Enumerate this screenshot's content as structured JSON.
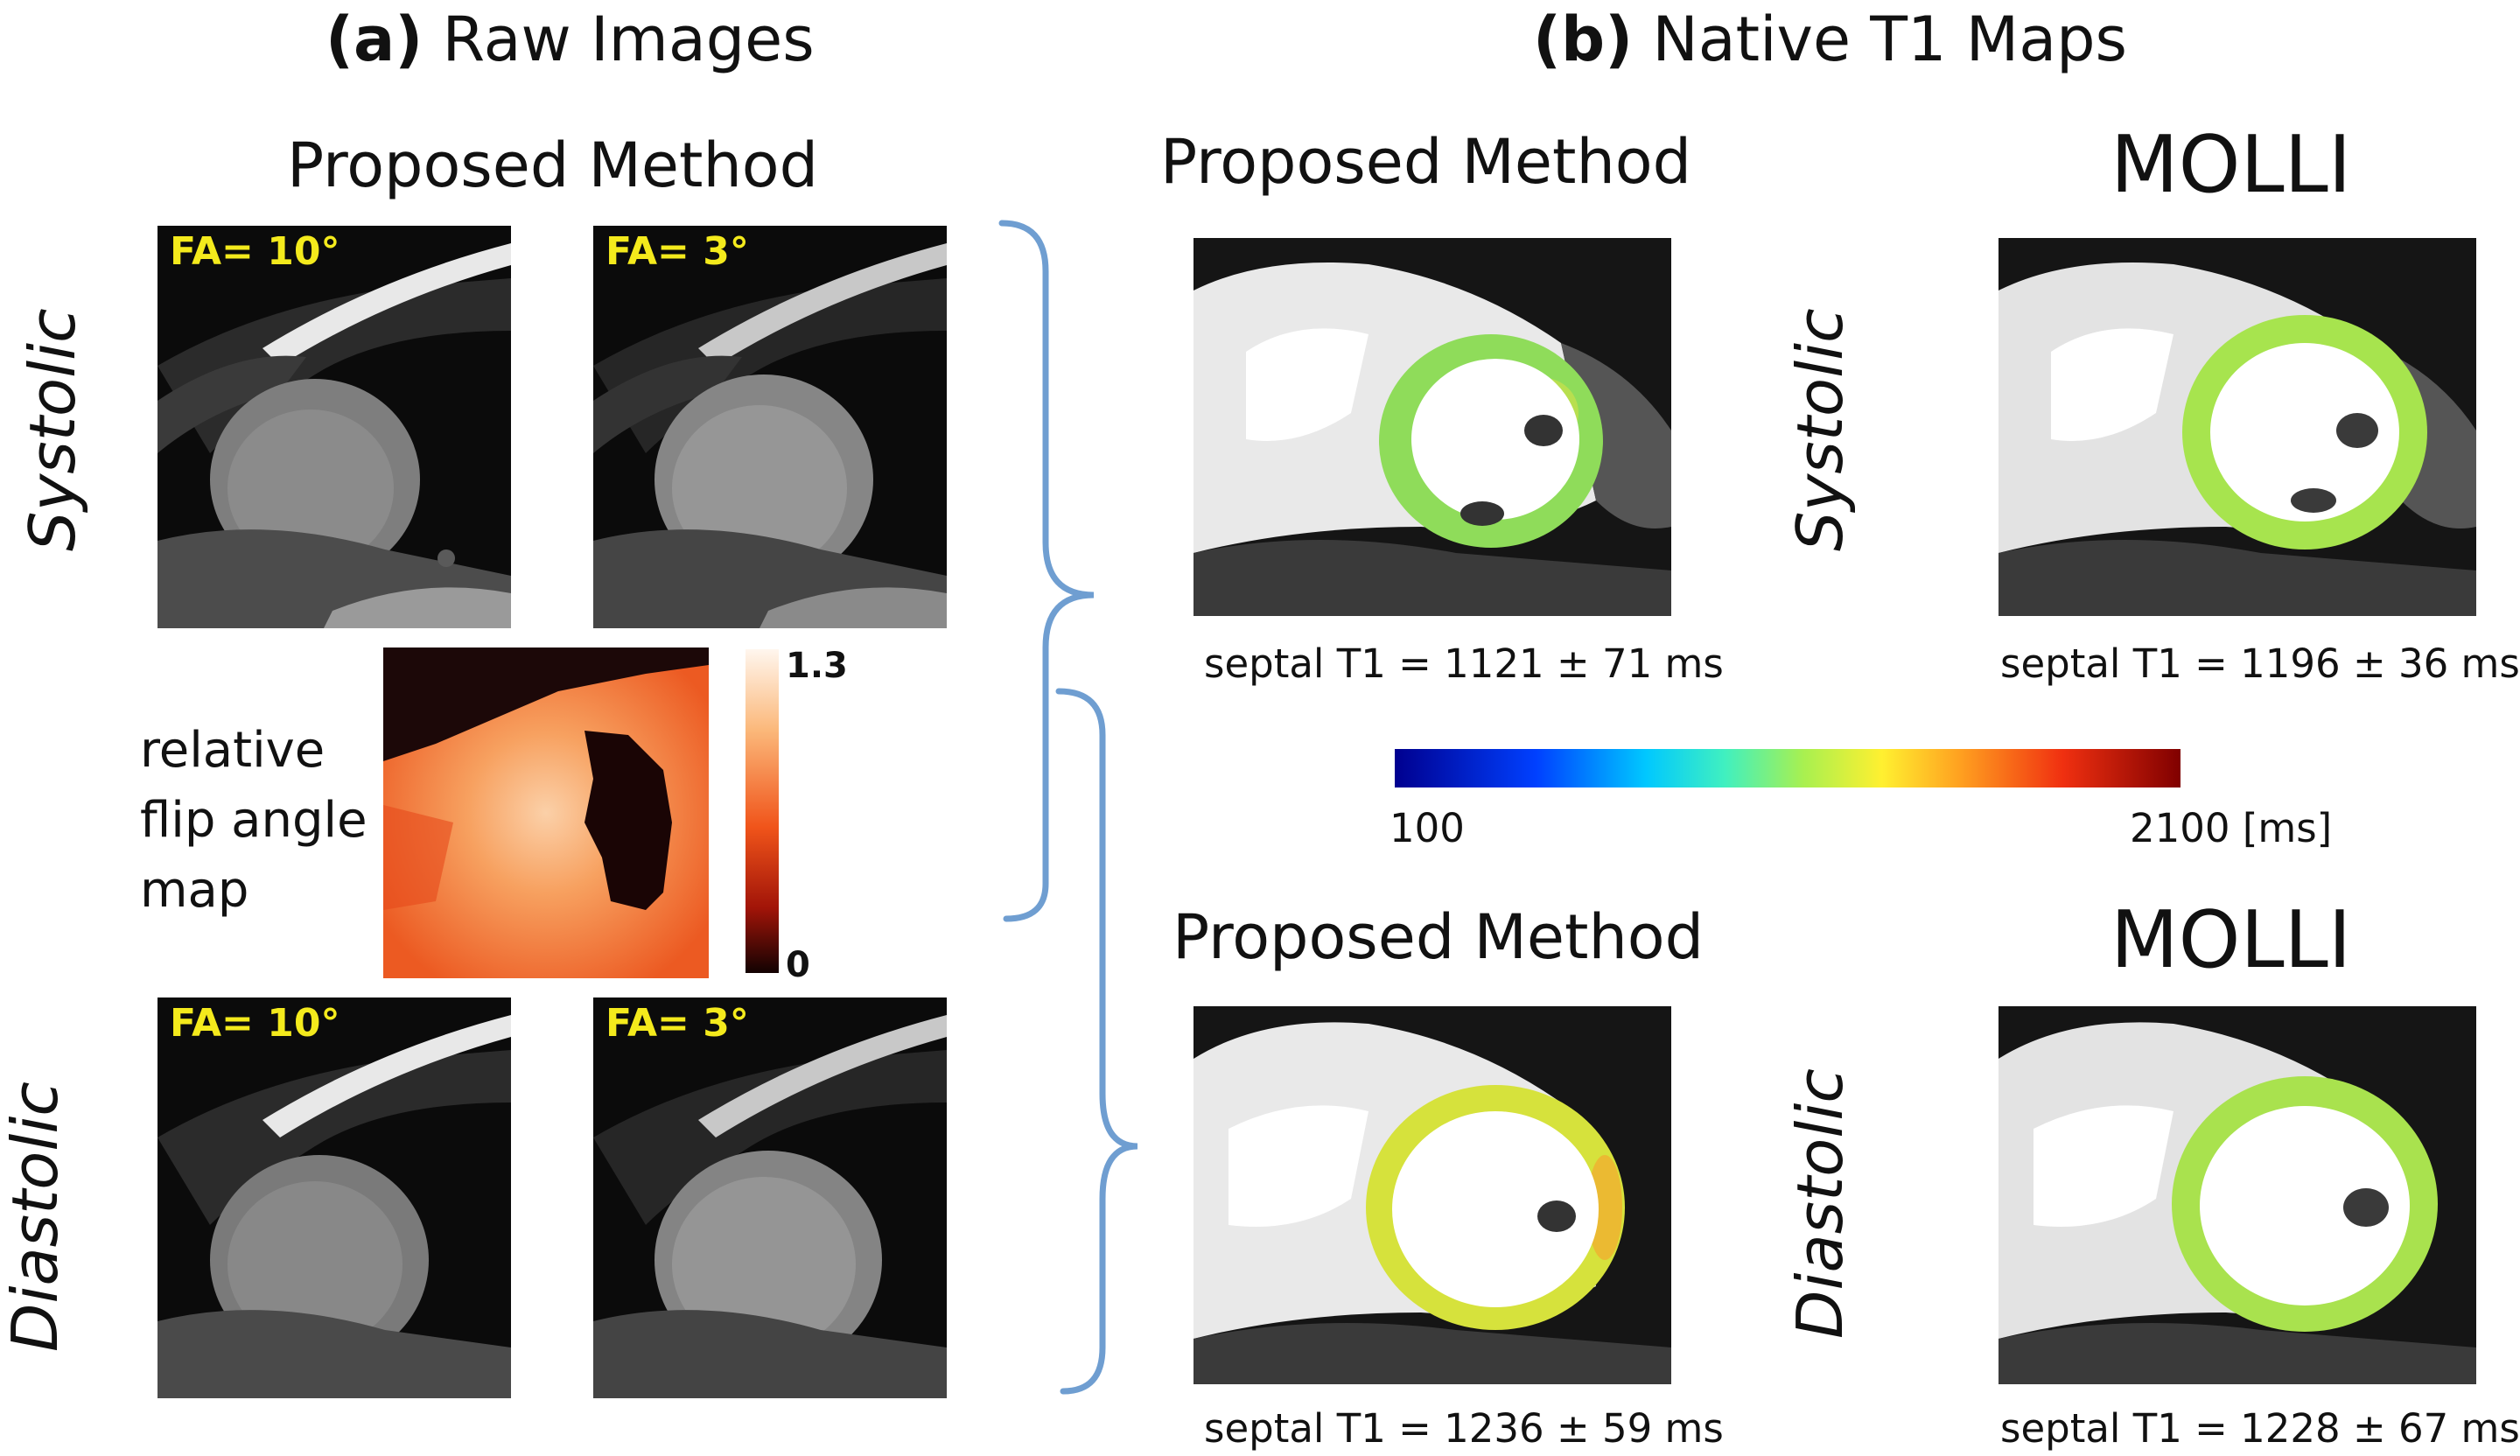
{
  "panel_a": {
    "prefix": "(a)",
    "title": "Raw Images",
    "method": "Proposed Method",
    "systolic_label": "Systolic",
    "diastolic_label": "Diastolic",
    "fa_high": "FA= 10°",
    "fa_low": "FA= 3°",
    "flip_map_label": [
      "relative",
      "flip angle",
      "map"
    ],
    "flip_colorbar_max": "1.3",
    "flip_colorbar_min": "0"
  },
  "panel_b": {
    "prefix": "(b)",
    "title": "Native T1 Maps",
    "method_proposed": "Proposed Method",
    "method_molli": "MOLLI",
    "systolic_label": "Systolic",
    "diastolic_label": "Diastolic",
    "captions": {
      "systolic_proposed": "septal T1 = 1121 ± 71 ms",
      "systolic_molli": "septal T1 = 1196 ± 36 ms",
      "diastolic_proposed": "septal T1 = 1236 ± 59 ms",
      "diastolic_molli": "septal T1 = 1228 ± 67 ms"
    },
    "t1_colorbar_min": "100",
    "t1_colorbar_max": "2100 [ms]"
  },
  "colors": {
    "fa_text": "#f4ea1c",
    "bracket": "#6f9ed1",
    "myocardium_systolic_proposed": "#8fdc5a",
    "myocardium_systolic_molli": "#a7e44e",
    "myocardium_diastolic_proposed": "#d6e23c",
    "myocardium_diastolic_molli": "#a9e24e"
  }
}
